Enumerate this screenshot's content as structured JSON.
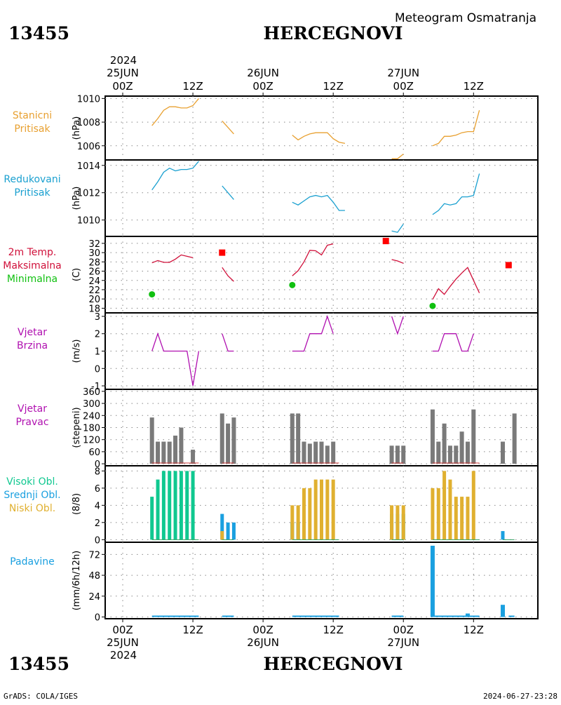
{
  "header": {
    "station_id": "13455",
    "station_name": "HERCEGNOVI",
    "chart_title": "Meteogram Osmatranja",
    "footer_left": "GrADS: COLA/IGES",
    "footer_right": "2024-06-27-23:28"
  },
  "time_axis": {
    "year": "2024",
    "date_labels": [
      "25JUN",
      "26JUN",
      "27JUN"
    ],
    "tick_labels": [
      "00Z",
      "12Z",
      "00Z",
      "12Z",
      "00Z",
      "12Z"
    ]
  },
  "colors": {
    "pressure_station": "#e8a030",
    "pressure_reduced": "#1aa0d0",
    "temp_max": "#d0103a",
    "temp_min": "#10c010",
    "wind": "#b010b0",
    "direction_bar": "#7a7a7a",
    "cloud_high": "#10c890",
    "cloud_mid": "#1aa0e0",
    "cloud_low": "#e0b030",
    "precip": "#1aa0e0",
    "panel_border": "#000000",
    "grid": "#888888"
  },
  "panels": [
    {
      "key": "p_station",
      "labels": [
        "Stanicni",
        "Pritisak"
      ],
      "label_colors": [
        "#e8a030",
        "#e8a030"
      ],
      "unit": "(hPa)",
      "ticks": [
        "1010",
        "1008",
        "1006"
      ]
    },
    {
      "key": "p_reduced",
      "labels": [
        "Redukovani",
        "Pritisak"
      ],
      "label_colors": [
        "#1aa0d0",
        "#1aa0d0"
      ],
      "unit": "(hPa)",
      "ticks": [
        "1014",
        "1012",
        "1010"
      ]
    },
    {
      "key": "temp",
      "labels": [
        "2m Temp.",
        "Maksimalna",
        "Minimalna"
      ],
      "label_colors": [
        "#d0103a",
        "#d0103a",
        "#10c010"
      ],
      "unit": "(C)",
      "ticks": [
        "32",
        "30",
        "28",
        "26",
        "24",
        "22",
        "20",
        "18"
      ]
    },
    {
      "key": "wind_speed",
      "labels": [
        "Vjetar",
        "Brzina"
      ],
      "label_colors": [
        "#b010b0",
        "#b010b0"
      ],
      "unit": "(m/s)",
      "ticks": [
        "3",
        "2",
        "1",
        "0",
        "-1"
      ]
    },
    {
      "key": "wind_dir",
      "labels": [
        "Vjetar",
        "Pravac"
      ],
      "label_colors": [
        "#b010b0",
        "#b010b0"
      ],
      "unit": "(stepeni)",
      "ticks": [
        "360",
        "300",
        "240",
        "180",
        "120",
        "60",
        "0"
      ]
    },
    {
      "key": "clouds",
      "labels": [
        "Visoki Obl.",
        "Srednji Obl.",
        "Niski Obl."
      ],
      "label_colors": [
        "#10c890",
        "#1aa0e0",
        "#e0b030"
      ],
      "unit": "(8/8)",
      "ticks": [
        "8",
        "6",
        "4",
        "2",
        "0"
      ]
    },
    {
      "key": "precip",
      "labels": [
        "Padavine"
      ],
      "label_colors": [
        "#1aa0e0"
      ],
      "unit": "(mm/6h/12h)",
      "ticks": [
        "72",
        "48",
        "24",
        "0"
      ]
    }
  ],
  "chart_data": {
    "type": "line",
    "time_unit": "hours since 25JUN2024 00Z",
    "x_range": [
      -3,
      71
    ],
    "series": {
      "p_station": {
        "ylim": [
          1004.8,
          1010.2
        ],
        "segments": [
          [
            [
              5,
              1007.7
            ],
            [
              6,
              1008.3
            ],
            [
              7,
              1009.0
            ],
            [
              8,
              1009.3
            ],
            [
              9,
              1009.3
            ],
            [
              10,
              1009.2
            ],
            [
              11,
              1009.2
            ],
            [
              12,
              1009.4
            ],
            [
              13,
              1010.0
            ]
          ],
          [
            [
              17,
              1008.1
            ],
            [
              19,
              1007.0
            ]
          ],
          [
            [
              29,
              1006.9
            ],
            [
              30,
              1006.5
            ],
            [
              31,
              1006.8
            ],
            [
              32,
              1007.0
            ],
            [
              33,
              1007.1
            ],
            [
              34,
              1007.1
            ],
            [
              35,
              1007.1
            ],
            [
              36,
              1006.6
            ],
            [
              37,
              1006.3
            ],
            [
              38,
              1006.2
            ]
          ],
          [
            [
              46,
              1004.9
            ],
            [
              47,
              1004.9
            ],
            [
              48,
              1005.3
            ]
          ],
          [
            [
              53,
              1006.0
            ],
            [
              54,
              1006.2
            ],
            [
              55,
              1006.8
            ],
            [
              56,
              1006.8
            ],
            [
              57,
              1006.9
            ],
            [
              58,
              1007.1
            ],
            [
              59,
              1007.2
            ],
            [
              60,
              1007.2
            ],
            [
              61,
              1009.0
            ]
          ]
        ]
      },
      "p_reduced": {
        "ylim": [
          1008.8,
          1014.4
        ],
        "segments": [
          [
            [
              5,
              1012.2
            ],
            [
              6,
              1012.8
            ],
            [
              7,
              1013.5
            ],
            [
              8,
              1013.8
            ],
            [
              9,
              1013.6
            ],
            [
              10,
              1013.7
            ],
            [
              11,
              1013.7
            ],
            [
              12,
              1013.8
            ],
            [
              13,
              1014.3
            ]
          ],
          [
            [
              17,
              1012.5
            ],
            [
              19,
              1011.5
            ]
          ],
          [
            [
              29,
              1011.3
            ],
            [
              30,
              1011.1
            ],
            [
              31,
              1011.4
            ],
            [
              32,
              1011.7
            ],
            [
              33,
              1011.8
            ],
            [
              34,
              1011.7
            ],
            [
              35,
              1011.8
            ],
            [
              36,
              1011.3
            ],
            [
              37,
              1010.7
            ],
            [
              38,
              1010.7
            ]
          ],
          [
            [
              46,
              1009.2
            ],
            [
              47,
              1009.1
            ],
            [
              48,
              1009.7
            ]
          ],
          [
            [
              53,
              1010.4
            ],
            [
              54,
              1010.7
            ],
            [
              55,
              1011.2
            ],
            [
              56,
              1011.1
            ],
            [
              57,
              1011.2
            ],
            [
              58,
              1011.7
            ],
            [
              59,
              1011.7
            ],
            [
              60,
              1011.8
            ],
            [
              61,
              1013.4
            ]
          ]
        ]
      },
      "temp": {
        "ylim": [
          17,
          33.5
        ],
        "segments": [
          [
            [
              5,
              27.8
            ],
            [
              6,
              28.3
            ],
            [
              7,
              27.9
            ],
            [
              8,
              27.9
            ],
            [
              9,
              28.6
            ],
            [
              10,
              29.5
            ],
            [
              11,
              29.2
            ],
            [
              12,
              28.9
            ]
          ],
          [
            [
              17,
              26.8
            ],
            [
              18,
              25.0
            ],
            [
              19,
              23.8
            ]
          ],
          [
            [
              29,
              25.0
            ],
            [
              30,
              26.1
            ],
            [
              31,
              28.0
            ],
            [
              32,
              30.5
            ],
            [
              33,
              30.4
            ],
            [
              34,
              29.5
            ],
            [
              35,
              31.6
            ],
            [
              36,
              31.9
            ]
          ],
          [
            [
              46,
              28.5
            ],
            [
              47,
              28.2
            ],
            [
              48,
              27.7
            ]
          ],
          [
            [
              53,
              19.9
            ],
            [
              54,
              22.2
            ],
            [
              55,
              21.0
            ],
            [
              56,
              22.7
            ],
            [
              57,
              24.3
            ],
            [
              58,
              25.6
            ],
            [
              59,
              26.8
            ],
            [
              60,
              24.0
            ],
            [
              61,
              21.3
            ]
          ]
        ],
        "max_points": [
          [
            17,
            30.0
          ],
          [
            45,
            32.5
          ],
          [
            66,
            27.3
          ]
        ],
        "min_points": [
          [
            5,
            21.0
          ],
          [
            29,
            23.0
          ],
          [
            53,
            18.5
          ]
        ]
      },
      "wind_speed": {
        "ylim": [
          -1.2,
          3.2
        ],
        "segments": [
          [
            [
              5,
              1
            ],
            [
              6,
              2
            ],
            [
              7,
              1
            ],
            [
              8,
              1
            ],
            [
              9,
              1
            ],
            [
              10,
              1
            ],
            [
              11,
              1
            ],
            [
              12,
              -1
            ],
            [
              13,
              1
            ]
          ],
          [
            [
              17,
              2
            ],
            [
              18,
              1
            ],
            [
              19,
              1
            ]
          ],
          [
            [
              29,
              1
            ],
            [
              30,
              1
            ],
            [
              31,
              1
            ],
            [
              32,
              2
            ],
            [
              33,
              2
            ],
            [
              34,
              2
            ],
            [
              35,
              3
            ],
            [
              36,
              2
            ]
          ],
          [
            [
              46,
              3
            ],
            [
              47,
              2
            ],
            [
              48,
              3
            ]
          ],
          [
            [
              53,
              1
            ],
            [
              54,
              1
            ],
            [
              55,
              2
            ],
            [
              56,
              2
            ],
            [
              57,
              2
            ],
            [
              58,
              1
            ],
            [
              59,
              1
            ],
            [
              60,
              2
            ]
          ]
        ]
      },
      "wind_dir": {
        "ylim": [
          -10,
          370
        ],
        "bars": [
          [
            5,
            230
          ],
          [
            6,
            110
          ],
          [
            7,
            110
          ],
          [
            8,
            110
          ],
          [
            9,
            140
          ],
          [
            10,
            180
          ],
          [
            12,
            70
          ],
          [
            17,
            250
          ],
          [
            18,
            200
          ],
          [
            19,
            230
          ],
          [
            29,
            250
          ],
          [
            30,
            250
          ],
          [
            31,
            110
          ],
          [
            32,
            100
          ],
          [
            33,
            110
          ],
          [
            34,
            110
          ],
          [
            35,
            90
          ],
          [
            36,
            110
          ],
          [
            46,
            90
          ],
          [
            47,
            90
          ],
          [
            48,
            90
          ],
          [
            53,
            270
          ],
          [
            54,
            110
          ],
          [
            55,
            200
          ],
          [
            56,
            90
          ],
          [
            57,
            90
          ],
          [
            58,
            160
          ],
          [
            59,
            110
          ],
          [
            60,
            270
          ],
          [
            65,
            110
          ],
          [
            67,
            250
          ]
        ]
      },
      "clouds": {
        "ylim": [
          -0.3,
          8.6
        ],
        "high": [
          [
            5,
            5
          ],
          [
            6,
            7
          ],
          [
            7,
            8
          ],
          [
            8,
            8
          ],
          [
            9,
            8
          ],
          [
            10,
            8
          ],
          [
            11,
            8
          ],
          [
            12,
            8
          ],
          [
            29,
            2
          ],
          [
            30,
            2
          ],
          [
            46,
            3
          ],
          [
            47,
            3
          ],
          [
            48,
            3
          ]
        ],
        "mid": [
          [
            17,
            3
          ],
          [
            18,
            2
          ],
          [
            19,
            2
          ],
          [
            29,
            2
          ],
          [
            30,
            2
          ],
          [
            46,
            2
          ],
          [
            65,
            1
          ]
        ],
        "low": [
          [
            17,
            1
          ],
          [
            29,
            4
          ],
          [
            30,
            4
          ],
          [
            31,
            6
          ],
          [
            32,
            6
          ],
          [
            33,
            7
          ],
          [
            34,
            7
          ],
          [
            35,
            7
          ],
          [
            36,
            7
          ],
          [
            46,
            4
          ],
          [
            47,
            4
          ],
          [
            48,
            4
          ],
          [
            53,
            6
          ],
          [
            54,
            6
          ],
          [
            55,
            8
          ],
          [
            56,
            7
          ],
          [
            57,
            5
          ],
          [
            58,
            5
          ],
          [
            59,
            5
          ],
          [
            60,
            8
          ]
        ]
      },
      "precip": {
        "ylim": [
          -2,
          86
        ],
        "bars": [
          [
            53,
            82
          ],
          [
            59,
            4
          ],
          [
            65,
            14
          ]
        ],
        "trace_segments": [
          [
            5,
            13
          ],
          [
            17,
            19
          ],
          [
            29,
            37
          ],
          [
            46,
            48
          ],
          [
            53,
            61
          ],
          [
            66,
            67
          ]
        ]
      }
    }
  }
}
